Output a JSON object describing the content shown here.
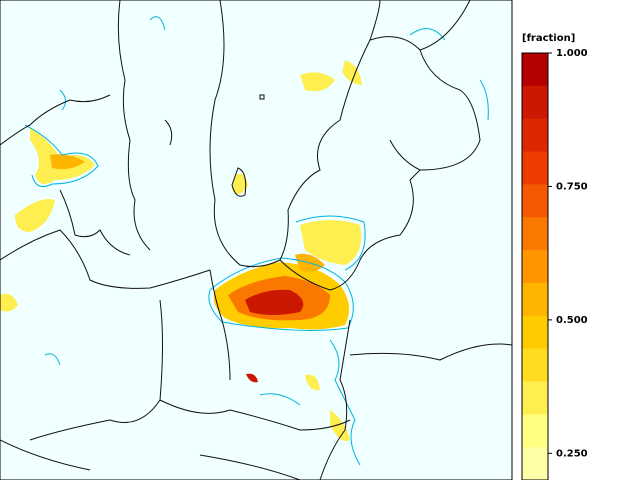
{
  "colorbar": {
    "title": "[fraction]",
    "lim": [
      0.2,
      1
    ],
    "ticks": [
      {
        "value": 1,
        "label": "1.000"
      },
      {
        "value": 0.75,
        "label": "0.750"
      },
      {
        "value": 0.5,
        "label": "0.500"
      },
      {
        "value": 0.25,
        "label": "0.250"
      }
    ],
    "colors": [
      "#b40000",
      "#cc1800",
      "#dc2800",
      "#ec3c00",
      "#f45a00",
      "#fa7800",
      "#ff9600",
      "#ffb400",
      "#ffcc00",
      "#ffdc20",
      "#ffee50",
      "#ffff80",
      "#ffffa8"
    ]
  }
}
